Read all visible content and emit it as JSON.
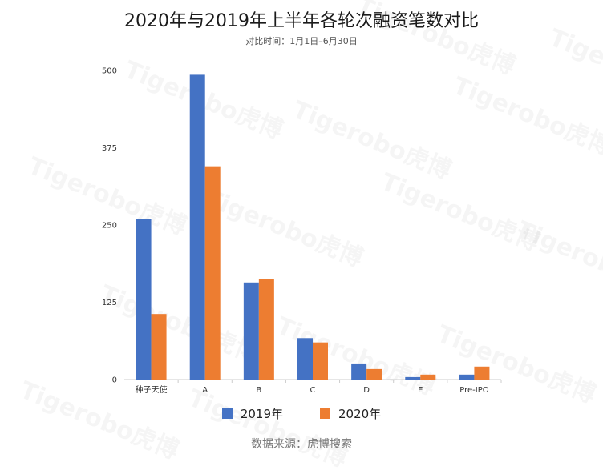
{
  "title": "2020年与2019年上半年各轮次融资笔数对比",
  "subtitle": "对比时间：1月1日–6月30日",
  "source": "数据来源：虎博搜索",
  "watermark": "Tigerobo虎博",
  "chart_data": {
    "type": "bar",
    "categories": [
      "种子天使",
      "A",
      "B",
      "C",
      "D",
      "E",
      "Pre-IPO"
    ],
    "series": [
      {
        "name": "2019年",
        "color": "#4472C4",
        "values": [
          260,
          493,
          157,
          67,
          26,
          4,
          8
        ]
      },
      {
        "name": "2020年",
        "color": "#ED7D31",
        "values": [
          106,
          345,
          162,
          60,
          17,
          8,
          21
        ]
      }
    ],
    "yticks": [
      "0",
      "125",
      "250",
      "375",
      "500"
    ],
    "ylim": [
      0,
      500
    ],
    "legend_position": "bottom",
    "grid": false
  }
}
